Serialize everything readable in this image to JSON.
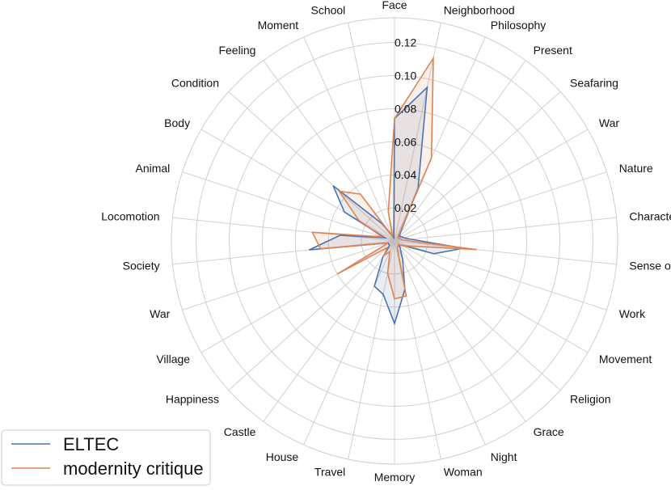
{
  "chart_data": {
    "type": "radar",
    "categories": [
      "Face",
      "Neighborhood",
      "Philosophy",
      "Present",
      "Seafaring",
      "War",
      "Nature",
      "Character",
      "Sense of Time",
      "Work",
      "Movement",
      "Religion",
      "Grace",
      "Night",
      "Woman",
      "Memory",
      "Travel",
      "House",
      "Castle",
      "Happiness",
      "Village",
      "War",
      "Society",
      "Locomotion",
      "Animal",
      "Body",
      "Condition",
      "Feeling",
      "Moment",
      "School"
    ],
    "rlim": [
      0,
      0.135
    ],
    "rticks": [
      0.02,
      0.04,
      0.06,
      0.08,
      0.1,
      0.12
    ],
    "rtick_labels": [
      "0.02",
      "0.04",
      "0.06",
      "0.08",
      "0.10",
      "0.12"
    ],
    "grid": true,
    "legend_position": "bottom-left",
    "series": [
      {
        "name": "ELTEC",
        "color": "#4c72b0",
        "values": [
          0.074,
          0.095,
          0.035,
          0.006,
          0.004,
          0.005,
          0.006,
          0.01,
          0.042,
          0.025,
          0.005,
          0.004,
          0.006,
          0.012,
          0.03,
          0.05,
          0.033,
          0.03,
          0.012,
          0.004,
          0.004,
          0.004,
          0.052,
          0.033,
          0.006,
          0.035,
          0.05,
          0.013,
          0.004,
          0.002
        ]
      },
      {
        "name": "modernity critique",
        "color": "#dd8452",
        "values": [
          0.074,
          0.113,
          0.055,
          0.004,
          0.003,
          0.003,
          0.004,
          0.005,
          0.05,
          0.01,
          0.006,
          0.003,
          0.004,
          0.004,
          0.034,
          0.035,
          0.02,
          0.007,
          0.011,
          0.006,
          0.04,
          0.004,
          0.045,
          0.05,
          0.008,
          0.025,
          0.045,
          0.035,
          0.003,
          0.018
        ]
      }
    ]
  }
}
